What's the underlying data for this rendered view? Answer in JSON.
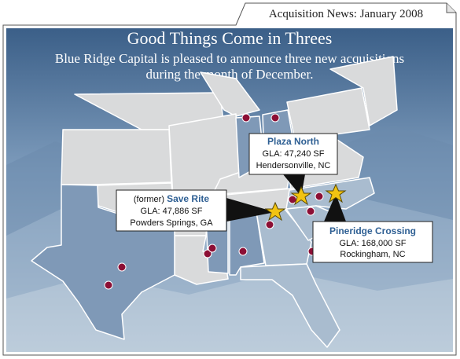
{
  "header": {
    "title": "Acquisition News: January 2008"
  },
  "headline": {
    "title": "Good Things Come in Threes",
    "subtitle_lines": [
      "Blue Ridge Capital is pleased to announce three new acquisitions",
      "during the month of December."
    ]
  },
  "acquisitions": [
    {
      "name": "Plaza North",
      "gla": "GLA: 47,240 SF",
      "location": "Hendersonville, NC"
    },
    {
      "prefix": "(former)",
      "name": "Save Rite",
      "gla": "GLA: 47,886 SF",
      "location": "Powders Springs, GA"
    },
    {
      "name": "Pineridge Crossing",
      "gla": "GLA: 168,000 SF",
      "location": "Rockingham, NC"
    }
  ]
}
